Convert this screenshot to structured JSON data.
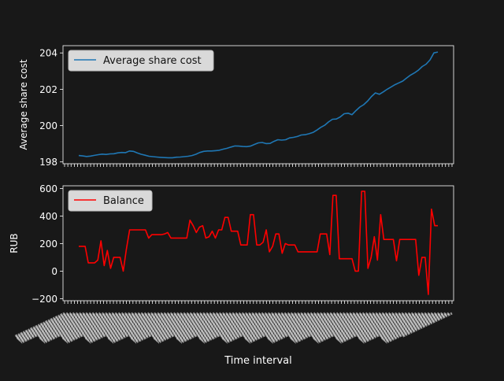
{
  "chart_data": [
    {
      "type": "line",
      "ylabel": "Average share cost",
      "ylim": [
        197.9,
        204.4
      ],
      "yticks": [
        198,
        200,
        202,
        204
      ],
      "legend": {
        "placement": "upper-left",
        "entries": [
          "Average share cost"
        ]
      },
      "grid": false,
      "series": [
        {
          "name": "Average share cost",
          "color": "#1f77b4",
          "values": [
            198.35,
            198.33,
            198.3,
            198.32,
            198.36,
            198.4,
            198.43,
            198.41,
            198.44,
            198.45,
            198.5,
            198.52,
            198.51,
            198.6,
            198.58,
            198.5,
            198.42,
            198.37,
            198.31,
            198.29,
            198.27,
            198.25,
            198.24,
            198.23,
            198.23,
            198.26,
            198.27,
            198.29,
            198.31,
            198.35,
            198.42,
            198.52,
            198.58,
            198.6,
            198.6,
            198.62,
            198.64,
            198.7,
            198.75,
            198.82,
            198.88,
            198.87,
            198.85,
            198.84,
            198.87,
            198.96,
            199.05,
            199.07,
            199.01,
            199.02,
            199.13,
            199.22,
            199.2,
            199.22,
            199.32,
            199.35,
            199.4,
            199.48,
            199.5,
            199.55,
            199.62,
            199.75,
            199.9,
            200.02,
            200.2,
            200.35,
            200.36,
            200.48,
            200.65,
            200.68,
            200.6,
            200.82,
            201.02,
            201.15,
            201.35,
            201.6,
            201.8,
            201.72,
            201.85,
            202.0,
            202.12,
            202.25,
            202.35,
            202.45,
            202.62,
            202.78,
            202.9,
            203.05,
            203.25,
            203.38,
            203.62,
            204.0,
            204.05
          ]
        }
      ]
    },
    {
      "type": "line",
      "xlabel": "Time interval",
      "ylabel": "RUB",
      "ylim": [
        -215,
        620
      ],
      "yticks": [
        -200,
        0,
        200,
        400,
        600
      ],
      "ytick_labels": [
        "−200",
        "0",
        "200",
        "400",
        "600"
      ],
      "legend": {
        "placement": "upper-left",
        "entries": [
          "Balance"
        ]
      },
      "grid": false,
      "series": [
        {
          "name": "Balance",
          "color": "#ff0000",
          "values": [
            180,
            180,
            180,
            60,
            60,
            60,
            80,
            220,
            40,
            150,
            20,
            100,
            100,
            100,
            0,
            160,
            300,
            300,
            300,
            300,
            300,
            300,
            240,
            265,
            265,
            265,
            265,
            270,
            280,
            240,
            240,
            240,
            240,
            240,
            240,
            370,
            330,
            280,
            320,
            330,
            240,
            250,
            290,
            240,
            300,
            300,
            390,
            390,
            290,
            290,
            290,
            190,
            190,
            190,
            410,
            410,
            190,
            190,
            210,
            300,
            140,
            180,
            270,
            270,
            130,
            200,
            190,
            190,
            190,
            140,
            140,
            140,
            140,
            140,
            140,
            140,
            270,
            270,
            270,
            120,
            550,
            550,
            90,
            90,
            90,
            90,
            90,
            0,
            0,
            580,
            580,
            20,
            100,
            250,
            80,
            410,
            230,
            230,
            230,
            230,
            75,
            230,
            230,
            230,
            230,
            230,
            230,
            -30,
            100,
            100,
            -170,
            450,
            330,
            330
          ]
        }
      ],
      "x_tick_count": 120
    }
  ]
}
